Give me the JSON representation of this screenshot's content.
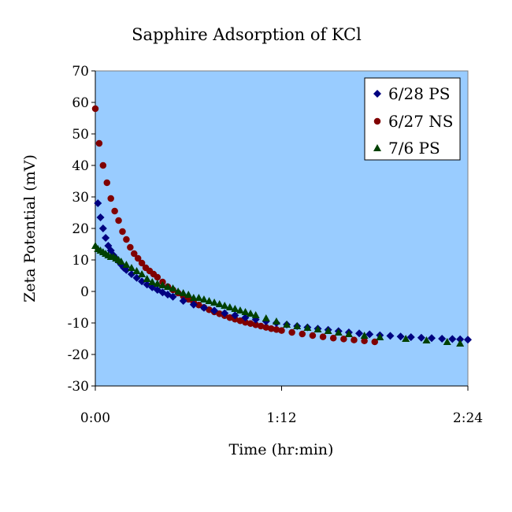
{
  "chart_data": {
    "type": "scatter",
    "title": "Sapphire Adsorption of KCl",
    "xlabel": "Time (hr:min)",
    "ylabel": "Zeta Potential (mV)",
    "x_unit": "minutes",
    "xlim": [
      0,
      144
    ],
    "ylim": [
      -30,
      70
    ],
    "x_ticks": [
      {
        "value": 0,
        "label": "0:00"
      },
      {
        "value": 72,
        "label": "1:12"
      },
      {
        "value": 144,
        "label": "2:24"
      }
    ],
    "y_ticks": [
      {
        "value": 70,
        "label": "70"
      },
      {
        "value": 60,
        "label": "60"
      },
      {
        "value": 50,
        "label": "50"
      },
      {
        "value": 40,
        "label": "40"
      },
      {
        "value": 30,
        "label": "30"
      },
      {
        "value": 20,
        "label": "20"
      },
      {
        "value": 10,
        "label": "10"
      },
      {
        "value": 0,
        "label": "0"
      },
      {
        "value": -10,
        "label": "-10"
      },
      {
        "value": -20,
        "label": "-20"
      },
      {
        "value": -30,
        "label": "-30"
      }
    ],
    "plot_background": "#99ccff",
    "grid": false,
    "legend_position": "top-right",
    "series": [
      {
        "name": "6/28 PS",
        "marker": "diamond",
        "color": "#000080",
        "x": [
          1,
          2,
          3,
          4,
          5,
          6,
          7,
          8,
          9,
          10,
          11,
          12,
          14,
          16,
          18,
          20,
          22,
          24,
          26,
          28,
          30,
          34,
          38,
          42,
          46,
          50,
          54,
          58,
          62,
          66,
          70,
          74,
          78,
          82,
          86,
          90,
          94,
          98,
          102,
          106,
          110,
          114,
          118,
          122,
          126,
          130,
          134,
          138,
          141,
          144
        ],
        "y": [
          28,
          23.5,
          20,
          17,
          14.5,
          13,
          11.5,
          10.5,
          9.5,
          8.5,
          7.5,
          6.8,
          5.5,
          4.3,
          3.2,
          2.2,
          1.3,
          0.5,
          -0.3,
          -1,
          -1.7,
          -3,
          -4.2,
          -5.2,
          -6.1,
          -6.9,
          -7.6,
          -8.3,
          -8.9,
          -9.5,
          -10,
          -10.5,
          -11,
          -11.4,
          -11.8,
          -12.2,
          -12.6,
          -13,
          -13.3,
          -13.6,
          -13.9,
          -14.1,
          -14.3,
          -14.5,
          -14.7,
          -14.8,
          -15,
          -15.1,
          -15.2,
          -15.3
        ]
      },
      {
        "name": "6/27 NS",
        "marker": "circle",
        "color": "#800000",
        "x": [
          0,
          1.5,
          3,
          4.5,
          6,
          7.5,
          9,
          10.5,
          12,
          13.5,
          15,
          16.5,
          18,
          19.5,
          21,
          22.5,
          24,
          26,
          28,
          30,
          32,
          34,
          36,
          38,
          40,
          42,
          44,
          46,
          48,
          50,
          52,
          54,
          56,
          58,
          60,
          62,
          64,
          66,
          68,
          70,
          72,
          76,
          80,
          84,
          88,
          92,
          96,
          100,
          104,
          108
        ],
        "y": [
          58,
          47,
          40,
          34.5,
          29.5,
          25.5,
          22.5,
          19,
          16.5,
          14,
          12,
          10.5,
          9,
          7.5,
          6.5,
          5.5,
          4.5,
          3,
          1.5,
          0.5,
          -0.5,
          -1.5,
          -2.5,
          -3.5,
          -4.3,
          -5.1,
          -5.8,
          -6.5,
          -7.1,
          -7.7,
          -8.3,
          -8.8,
          -9.3,
          -9.8,
          -10.2,
          -10.6,
          -11,
          -11.4,
          -11.8,
          -12.1,
          -12.4,
          -13,
          -13.5,
          -14,
          -14.4,
          -14.8,
          -15.1,
          -15.4,
          -15.7,
          -16
        ]
      },
      {
        "name": "7/6 PS",
        "marker": "triangle",
        "color": "#004000",
        "x": [
          0,
          1,
          2,
          3,
          4,
          5,
          6,
          7,
          8,
          9,
          10,
          12,
          14,
          16,
          18,
          20,
          22,
          24,
          26,
          28,
          30,
          32,
          34,
          36,
          38,
          40,
          42,
          44,
          46,
          48,
          50,
          52,
          54,
          56,
          58,
          60,
          62,
          66,
          70,
          74,
          78,
          82,
          86,
          90,
          94,
          98,
          104,
          110,
          120,
          128,
          136,
          141
        ],
        "y": [
          14.5,
          13.5,
          13,
          12.5,
          12,
          11.5,
          11,
          11,
          10.5,
          10,
          9.5,
          8.5,
          7.5,
          6.5,
          5.5,
          4,
          3,
          2.5,
          2,
          1.5,
          1,
          0,
          -0.5,
          -1,
          -2,
          -2,
          -2.5,
          -3,
          -3.5,
          -4,
          -4.5,
          -5,
          -5.5,
          -6,
          -6.5,
          -7,
          -7.5,
          -8.5,
          -9.5,
          -10.5,
          -11,
          -11.5,
          -12,
          -12.5,
          -13,
          -13.5,
          -14,
          -14.5,
          -15,
          -15.5,
          -16,
          -16.5
        ]
      }
    ]
  }
}
